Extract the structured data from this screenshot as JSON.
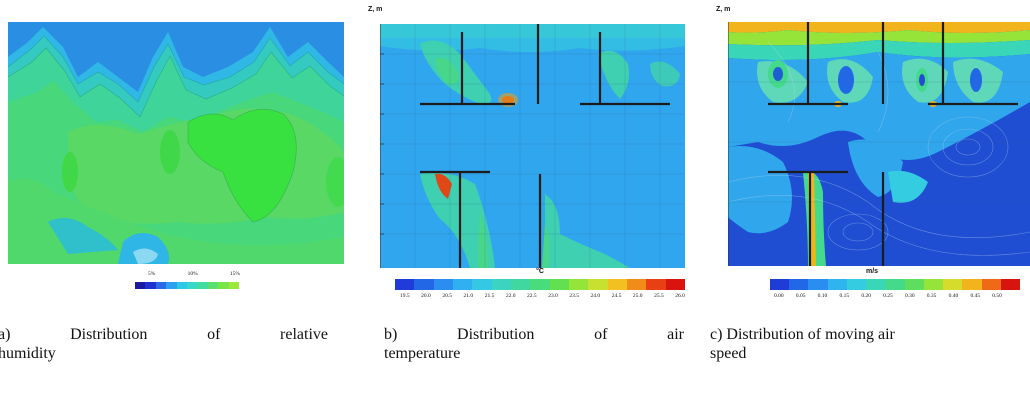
{
  "panels": [
    {
      "id": "a",
      "colorbar": {
        "ticks": [
          "5%",
          "10%",
          "15%"
        ],
        "colors": [
          "#1a1aa0",
          "#2030d0",
          "#2a6ae6",
          "#2ea0f0",
          "#30c8e8",
          "#38d8c8",
          "#40dca0",
          "#58e070",
          "#78e448",
          "#9ae838"
        ]
      },
      "caption": {
        "prefix": "a)",
        "words": [
          "Distribution",
          "of",
          "relative"
        ],
        "line2": "humidity"
      }
    },
    {
      "id": "b",
      "axis_label": "Z, m",
      "unit": "°C",
      "colorbar": {
        "ticks": [
          "19.5",
          "20.0",
          "20.5",
          "21.0",
          "21.5",
          "22.0",
          "22.5",
          "23.0",
          "23.5",
          "24.0",
          "24.5",
          "25.0",
          "25.5",
          "26.0"
        ],
        "colors": [
          "#1f3cd8",
          "#2268e6",
          "#2a8ef0",
          "#30b0f0",
          "#34c8e4",
          "#3ad4c0",
          "#40d8a0",
          "#48dc7c",
          "#62e052",
          "#94e43a",
          "#c8e030",
          "#f2c020",
          "#f28c18",
          "#e84014",
          "#d81410"
        ]
      },
      "caption": {
        "prefix": "b)",
        "words": [
          "Distribution",
          "of",
          "air"
        ],
        "line2": "temperature"
      }
    },
    {
      "id": "c",
      "axis_label": "Z, m",
      "unit": "m/s",
      "colorbar": {
        "ticks": [
          "0.00",
          "0.05",
          "0.10",
          "0.15",
          "0.20",
          "0.25",
          "0.30",
          "0.35",
          "0.40",
          "0.45",
          "0.50"
        ],
        "colors": [
          "#1f3cd8",
          "#2268e6",
          "#2a8ef0",
          "#30b4f0",
          "#34cce0",
          "#3ad6b8",
          "#44da8c",
          "#5ede5c",
          "#96e43a",
          "#d6dc2c",
          "#f2b41c",
          "#ee6a16",
          "#d81410"
        ]
      },
      "caption": {
        "line1": "c) Distribution of moving air",
        "line2": "speed"
      }
    }
  ]
}
